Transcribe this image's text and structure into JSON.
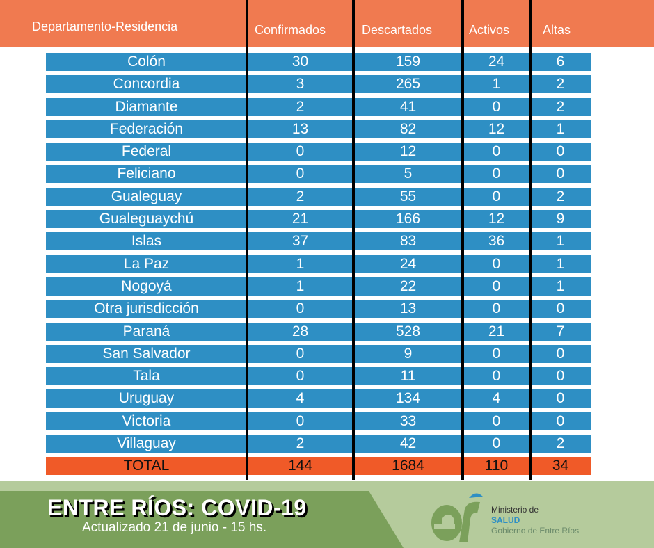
{
  "header": {
    "columns": [
      "Departamento-Residencia",
      "Confirmados",
      "Descartados",
      "Activos",
      "Altas"
    ]
  },
  "rows": [
    [
      "Colón",
      "30",
      "159",
      "24",
      "6"
    ],
    [
      "Concordia",
      "3",
      "265",
      "1",
      "2"
    ],
    [
      "Diamante",
      "2",
      "41",
      "0",
      "2"
    ],
    [
      "Federación",
      "13",
      "82",
      "12",
      "1"
    ],
    [
      "Federal",
      "0",
      "12",
      "0",
      "0"
    ],
    [
      "Feliciano",
      "0",
      "5",
      "0",
      "0"
    ],
    [
      "Gualeguay",
      "2",
      "55",
      "0",
      "2"
    ],
    [
      "Gualeguaychú",
      "21",
      "166",
      "12",
      "9"
    ],
    [
      "Islas",
      "37",
      "83",
      "36",
      "1"
    ],
    [
      "La Paz",
      "1",
      "24",
      "0",
      "1"
    ],
    [
      "Nogoyá",
      "1",
      "22",
      "0",
      "1"
    ],
    [
      "Otra jurisdicción",
      "0",
      "13",
      "0",
      "0"
    ],
    [
      "Paraná",
      "28",
      "528",
      "21",
      "7"
    ],
    [
      "San Salvador",
      "0",
      "9",
      "0",
      "0"
    ],
    [
      "Tala",
      "0",
      "11",
      "0",
      "0"
    ],
    [
      "Uruguay",
      "4",
      "134",
      "4",
      "0"
    ],
    [
      "Victoria",
      "0",
      "33",
      "0",
      "0"
    ],
    [
      "Villaguay",
      "2",
      "42",
      "0",
      "2"
    ]
  ],
  "total": [
    "TOTAL",
    "144",
    "1684",
    "110",
    "34"
  ],
  "footer": {
    "title": "ENTRE RÍOS: COVID-19",
    "subtitle": "Actualizado 21 de junio - 15 hs.",
    "logo_line1": "Ministerio de",
    "logo_line2": "SALUD",
    "logo_line3": "Gobierno de Entre Ríos"
  },
  "colors": {
    "header": "#f07a50",
    "row": "#2e8fc4",
    "total": "#f05a28",
    "green": "#7ba05b"
  }
}
